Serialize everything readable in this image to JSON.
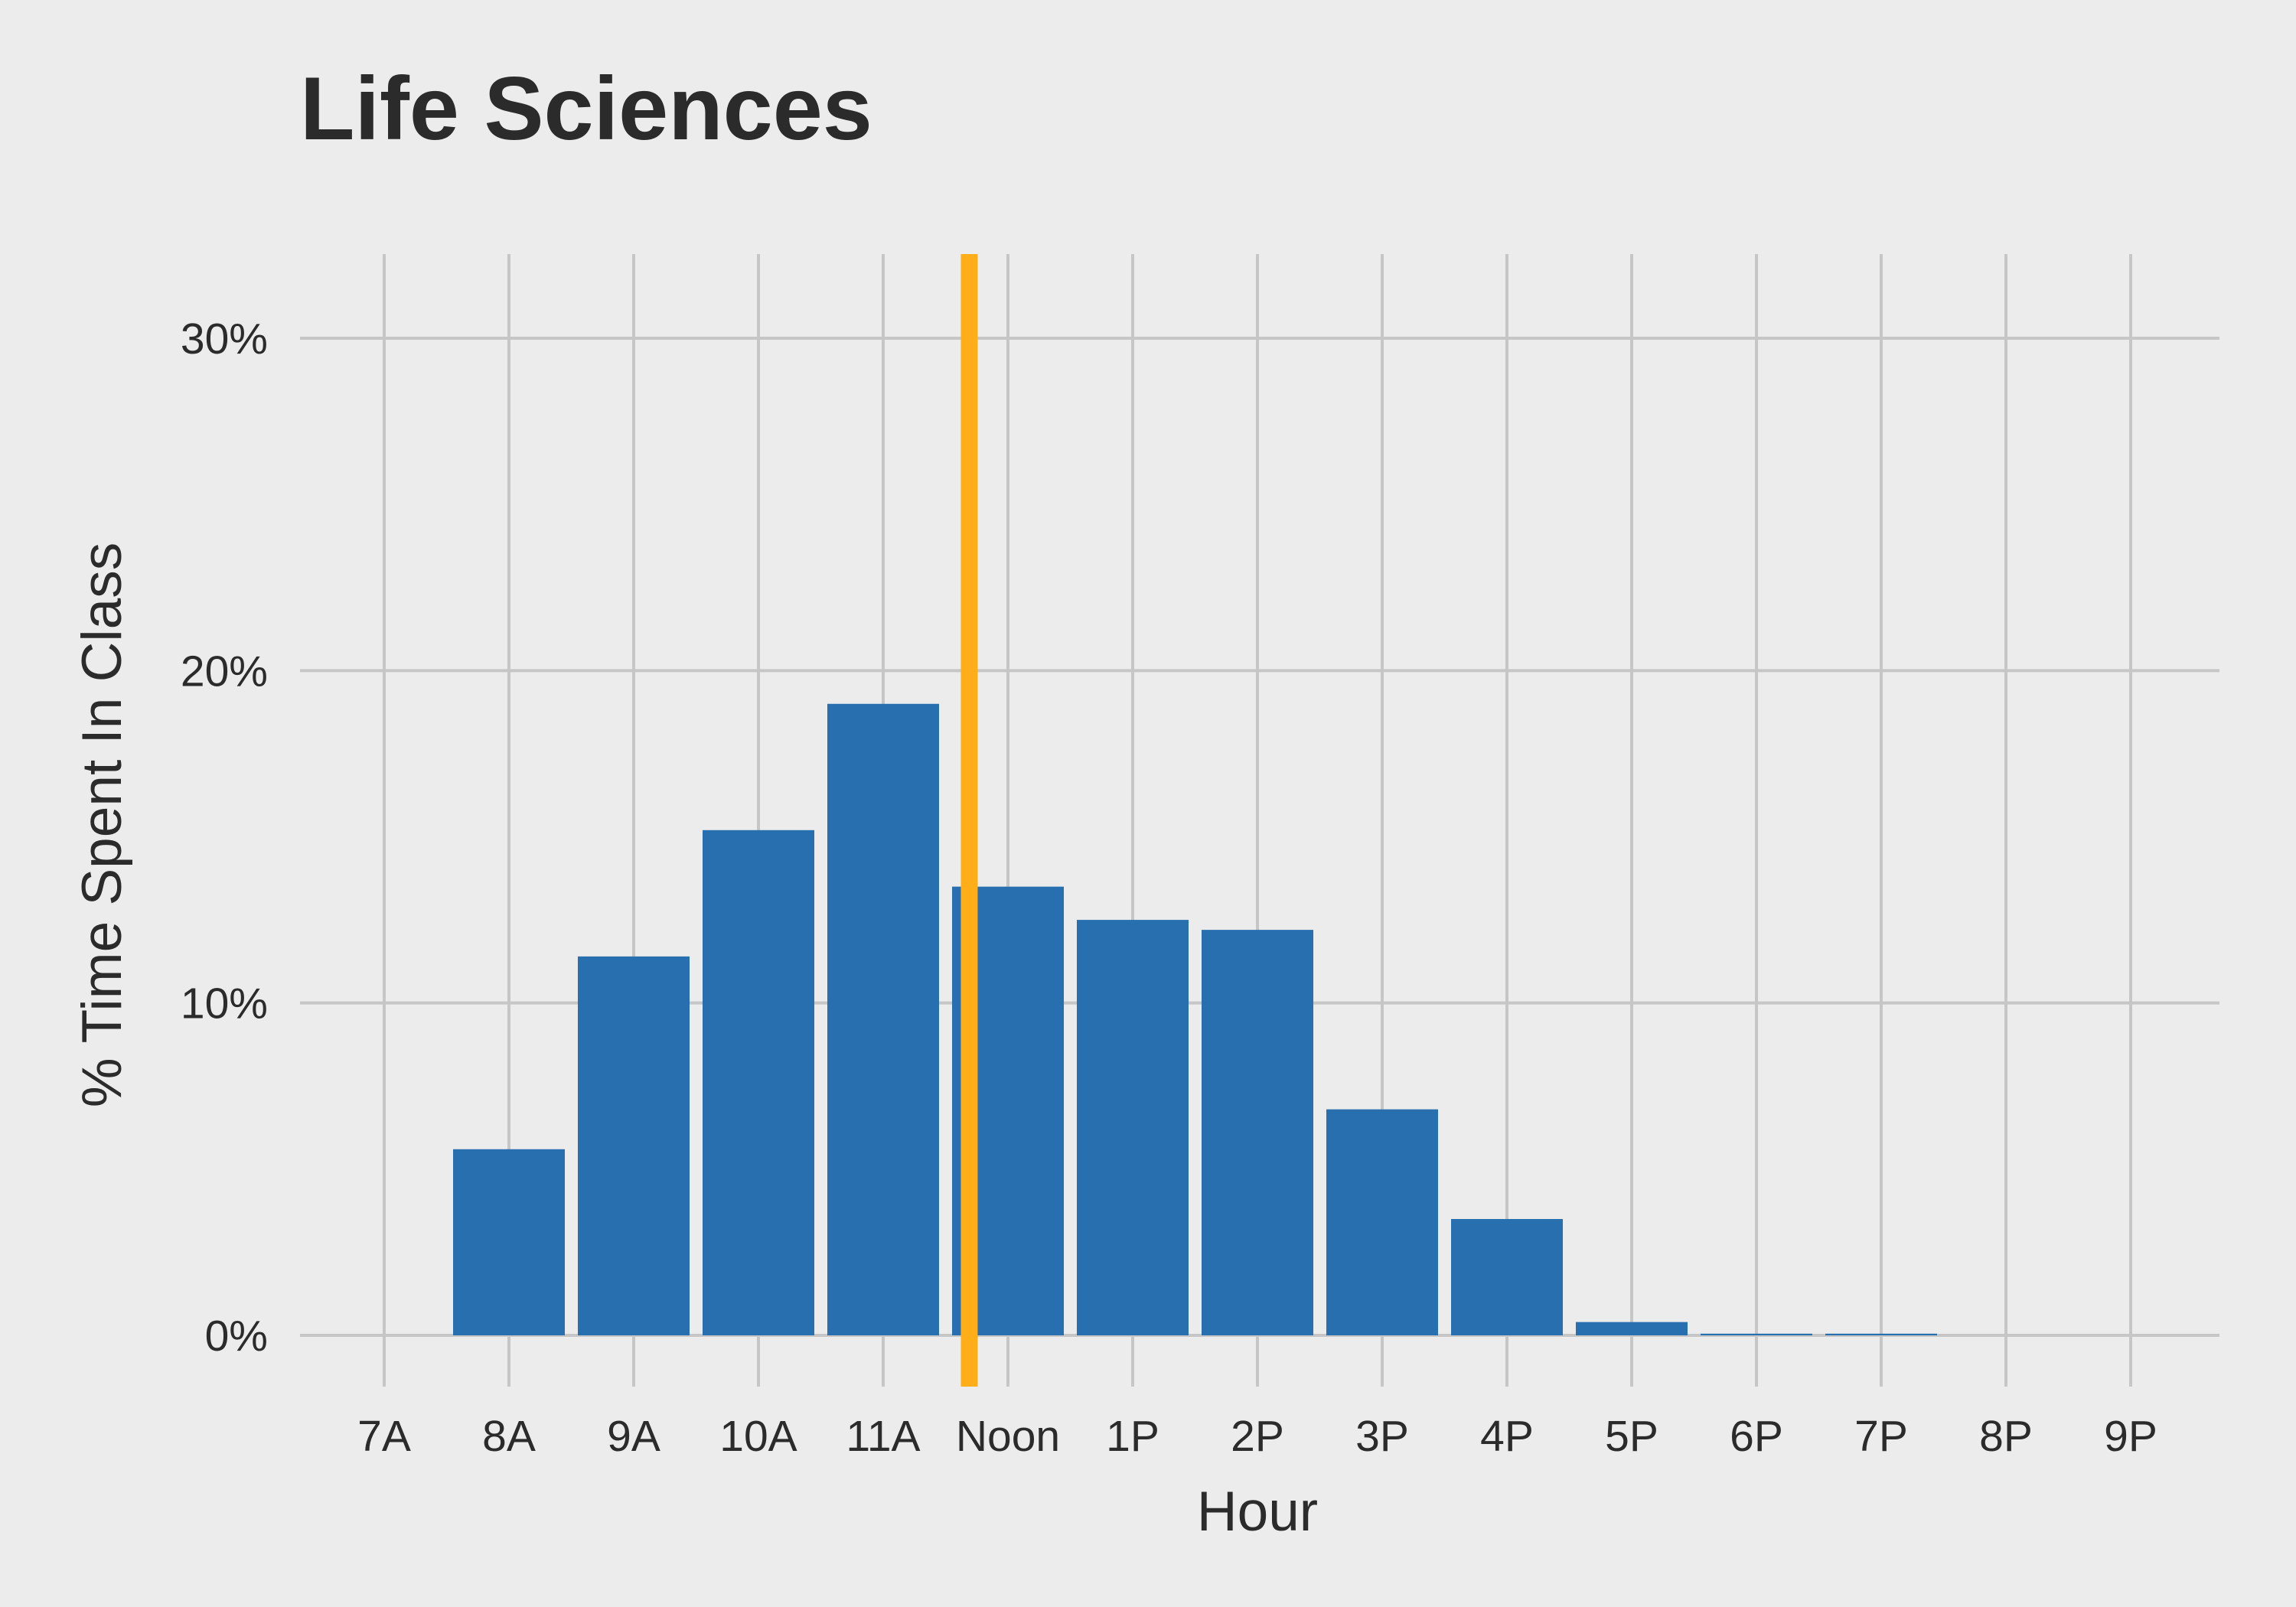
{
  "chart_data": {
    "type": "bar",
    "title": "Life Sciences",
    "xlabel": "Hour",
    "ylabel": "% Time Spent In Class",
    "categories": [
      "7A",
      "8A",
      "9A",
      "10A",
      "11A",
      "Noon",
      "1P",
      "2P",
      "3P",
      "4P",
      "5P",
      "6P",
      "7P",
      "8P",
      "9P"
    ],
    "values": [
      0,
      5.6,
      11.4,
      15.2,
      19.0,
      13.5,
      12.5,
      12.2,
      6.8,
      3.5,
      0.4,
      0.05,
      0.05,
      0,
      0
    ],
    "ylim": [
      0,
      32.5
    ],
    "yticks": [
      0,
      10,
      20,
      30
    ],
    "ytick_labels": [
      "0%",
      "10%",
      "20%",
      "30%"
    ],
    "grid": true,
    "legend": "none",
    "reference_line": {
      "x_hour": 11.69,
      "color": "#ffae1a"
    },
    "colors": {
      "bar": "#286faf",
      "background": "#ececec",
      "grid": "#c6c6c6",
      "text": "#2b2b2b"
    }
  }
}
